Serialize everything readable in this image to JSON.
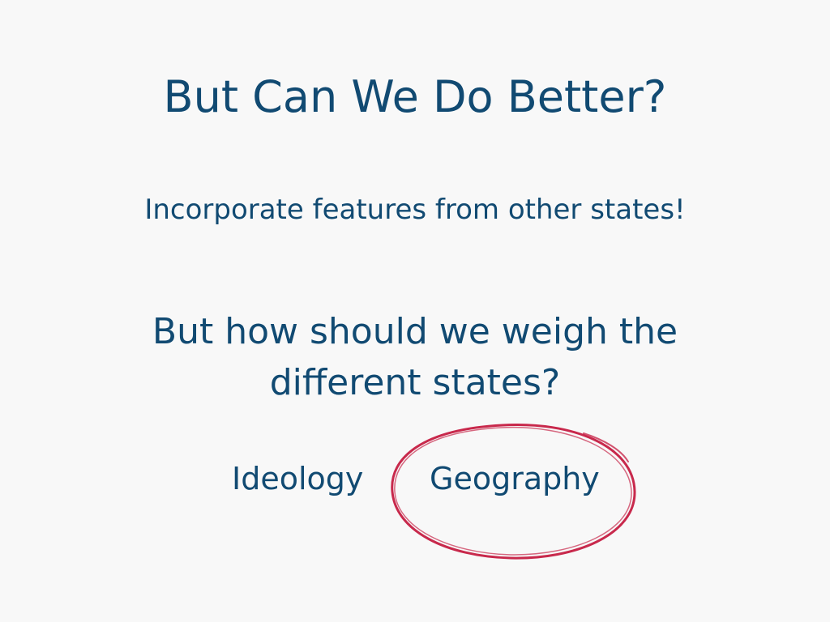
{
  "slide": {
    "title": "But Can We Do Better?",
    "subtitle": "Incorporate features from other states!",
    "question": "But how should we weigh the different states?",
    "options": [
      {
        "label": "Ideology",
        "circled": false
      },
      {
        "label": "Geography",
        "circled": true
      }
    ]
  },
  "colors": {
    "background": "#f8f8f8",
    "text": "#114a72",
    "annotation": "#c8294c"
  }
}
